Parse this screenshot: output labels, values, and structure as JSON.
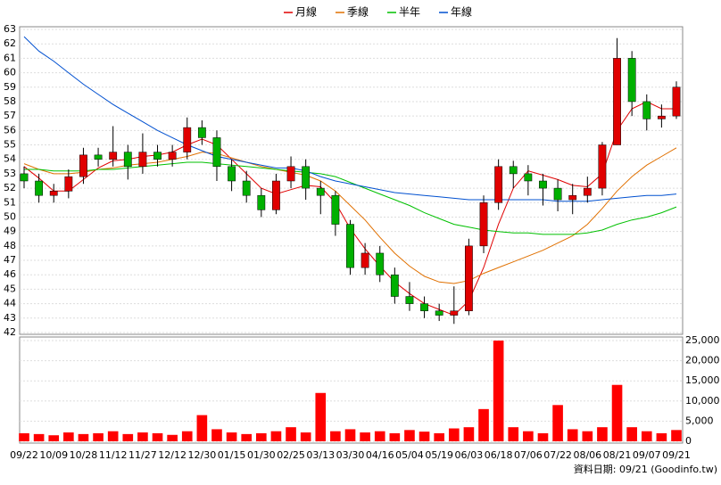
{
  "chart_data": [
    {
      "type": "candlestick",
      "ylim": [
        42,
        63
      ],
      "yticks": [
        42,
        43,
        44,
        45,
        46,
        47,
        48,
        49,
        50,
        51,
        52,
        53,
        54,
        55,
        56,
        57,
        58,
        59,
        60,
        61,
        62,
        63
      ],
      "grid": true,
      "legend": "top",
      "ohlc": {
        "up_color": "#e00000",
        "down_color": "#00b000",
        "open": [
          53,
          52.5,
          51.5,
          51.8,
          52.8,
          54.3,
          54,
          54.5,
          53.5,
          54.5,
          54,
          54.5,
          56.2,
          55.5,
          53.5,
          52.5,
          51.5,
          50.5,
          52.5,
          53.5,
          52,
          51.5,
          49.5,
          46.5,
          47.5,
          46,
          44.5,
          44,
          43.5,
          43.2,
          43.5,
          48,
          51,
          53.5,
          53,
          52.5,
          52,
          51.2,
          51.5,
          52,
          55,
          61,
          58,
          56.8,
          57
        ],
        "high": [
          53.5,
          53,
          52.3,
          53.3,
          54.8,
          54.8,
          56.3,
          55,
          55.8,
          55,
          55,
          56.9,
          56.7,
          56,
          54,
          53.2,
          52,
          53,
          54.2,
          54,
          52.5,
          51.8,
          49.8,
          48.2,
          48,
          46.5,
          45.5,
          44.5,
          44,
          45.2,
          48.5,
          51.5,
          54,
          53.9,
          53.6,
          53,
          52.6,
          52.3,
          52.8,
          55.2,
          62.4,
          61.5,
          58.5,
          57.8,
          59.4
        ],
        "low": [
          52,
          51,
          51,
          51.3,
          52.3,
          53.5,
          53.5,
          52.6,
          53,
          53.5,
          53.5,
          54,
          55,
          52.5,
          51.8,
          51,
          50,
          50.2,
          52,
          51.2,
          50.2,
          48.7,
          46,
          46,
          45.5,
          44,
          43.5,
          43,
          42.8,
          42.6,
          43.2,
          47.5,
          50.5,
          52,
          51.5,
          50.8,
          50.4,
          50.2,
          51,
          51.5,
          55,
          57,
          56,
          56.2,
          56.8
        ],
        "close": [
          52.5,
          51.5,
          51.8,
          52.8,
          54.3,
          54,
          54.5,
          53.5,
          54.5,
          54,
          54.5,
          56.2,
          55.5,
          53.5,
          52.5,
          51.5,
          50.5,
          52.5,
          53.5,
          52,
          51.5,
          49.5,
          46.5,
          47.5,
          46,
          44.5,
          44,
          43.5,
          43.2,
          43.5,
          48,
          51,
          53.5,
          53,
          52.5,
          52,
          51.2,
          51.5,
          52,
          55,
          61,
          58,
          56.8,
          57,
          59
        ]
      },
      "series": [
        {
          "name": "月線",
          "color": "#e00000",
          "values": [
            53.5,
            52.7,
            51.8,
            51.8,
            52.6,
            53.4,
            53.9,
            54,
            54.2,
            54.3,
            54.5,
            55,
            55.4,
            55,
            54,
            53,
            52,
            51.6,
            51.9,
            52.2,
            52.1,
            51,
            49.2,
            47.8,
            46.6,
            45.5,
            44.7,
            44,
            43.6,
            43.2,
            44.2,
            46.5,
            49.5,
            52,
            53.2,
            52.9,
            52.6,
            52.2,
            52.1,
            53,
            56,
            57.5,
            58,
            57.5,
            57.5
          ]
        },
        {
          "name": "季線",
          "color": "#e07000",
          "values": [
            53.7,
            53.3,
            53,
            53,
            53.1,
            53.3,
            53.4,
            53.6,
            53.7,
            53.8,
            54,
            54.2,
            54.5,
            54.4,
            54.1,
            53.8,
            53.5,
            53.3,
            53.1,
            52.9,
            52.5,
            51.8,
            50.8,
            49.8,
            48.6,
            47.5,
            46.6,
            45.9,
            45.5,
            45.4,
            45.6,
            46.1,
            46.5,
            46.9,
            47.3,
            47.7,
            48.2,
            48.7,
            49.5,
            50.6,
            51.8,
            52.8,
            53.6,
            54.2,
            54.8
          ]
        },
        {
          "name": "半年",
          "color": "#00c000",
          "values": [
            53.3,
            53.3,
            53.2,
            53.2,
            53.2,
            53.3,
            53.3,
            53.4,
            53.5,
            53.6,
            53.7,
            53.8,
            53.8,
            53.7,
            53.6,
            53.5,
            53.4,
            53.3,
            53.2,
            53.1,
            53,
            52.8,
            52.4,
            52,
            51.6,
            51.2,
            50.8,
            50.3,
            49.9,
            49.5,
            49.3,
            49.1,
            49,
            48.9,
            48.9,
            48.8,
            48.8,
            48.8,
            48.9,
            49.1,
            49.5,
            49.8,
            50,
            50.3,
            50.7
          ]
        },
        {
          "name": "年線",
          "color": "#0050d0",
          "values": [
            62.5,
            61.5,
            60.8,
            60,
            59.2,
            58.5,
            57.8,
            57.2,
            56.6,
            56,
            55.5,
            55,
            54.6,
            54.2,
            54,
            53.8,
            53.6,
            53.4,
            53.4,
            53.2,
            52.8,
            52.5,
            52.3,
            52.1,
            51.9,
            51.7,
            51.6,
            51.5,
            51.4,
            51.3,
            51.2,
            51.2,
            51.2,
            51.2,
            51.2,
            51.2,
            51.1,
            51.1,
            51.1,
            51.2,
            51.3,
            51.4,
            51.5,
            51.5,
            51.6
          ]
        }
      ]
    },
    {
      "type": "bar",
      "categories": [
        "09/22",
        null,
        "10/09",
        null,
        "10/28",
        null,
        "11/12",
        null,
        "11/27",
        null,
        "12/12",
        null,
        "12/30",
        null,
        "01/15",
        null,
        "01/30",
        null,
        "02/25",
        null,
        "03/13",
        null,
        "03/30",
        null,
        "04/16",
        null,
        "05/04",
        null,
        "05/19",
        null,
        "06/03",
        null,
        "06/18",
        null,
        "07/06",
        null,
        "07/22",
        null,
        "08/06",
        null,
        "08/21",
        null,
        "09/07",
        null,
        "09/21"
      ],
      "values": [
        2000,
        1800,
        1500,
        2200,
        1800,
        2000,
        2500,
        1800,
        2200,
        2000,
        1600,
        2500,
        6500,
        3000,
        2200,
        1800,
        2000,
        2500,
        3500,
        2200,
        12000,
        2500,
        3000,
        2200,
        2500,
        2000,
        2800,
        2400,
        2000,
        3200,
        3500,
        8000,
        25000,
        3500,
        2500,
        2000,
        9000,
        3000,
        2500,
        3500,
        14000,
        3500,
        2500,
        2000,
        2800
      ],
      "color": "#ff0000",
      "ylim": [
        0,
        25000
      ],
      "yticks": [
        0,
        5000,
        10000,
        15000,
        20000,
        25000
      ],
      "ytick_labels": [
        "0",
        "5,000",
        "10,000",
        "15,000",
        "20,000",
        "25,000"
      ],
      "grid": true
    }
  ],
  "footer": "資料日期: 09/21 (Goodinfo.tw)"
}
